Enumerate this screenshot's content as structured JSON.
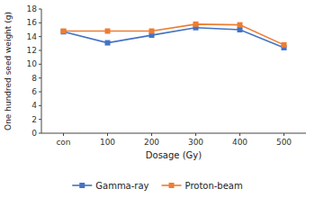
{
  "chart_data": {
    "type": "line",
    "categories": [
      "con",
      "100",
      "200",
      "300",
      "400",
      "500"
    ],
    "series": [
      {
        "name": "Gamma-ray",
        "color": "#4472c4",
        "marker": "square",
        "values": [
          14.7,
          13.1,
          14.2,
          15.3,
          15.0,
          12.4
        ]
      },
      {
        "name": "Proton-beam",
        "color": "#ed7d31",
        "marker": "square",
        "values": [
          14.8,
          14.8,
          14.8,
          15.8,
          15.7,
          12.8
        ]
      }
    ],
    "xlabel": "Dosage (Gy)",
    "ylabel": "One hundred seed weight (g)",
    "ylim": [
      0,
      18
    ],
    "yticks": [
      0,
      2,
      4,
      6,
      8,
      10,
      12,
      14,
      16,
      18
    ],
    "grid": false,
    "legend": "bottom"
  }
}
